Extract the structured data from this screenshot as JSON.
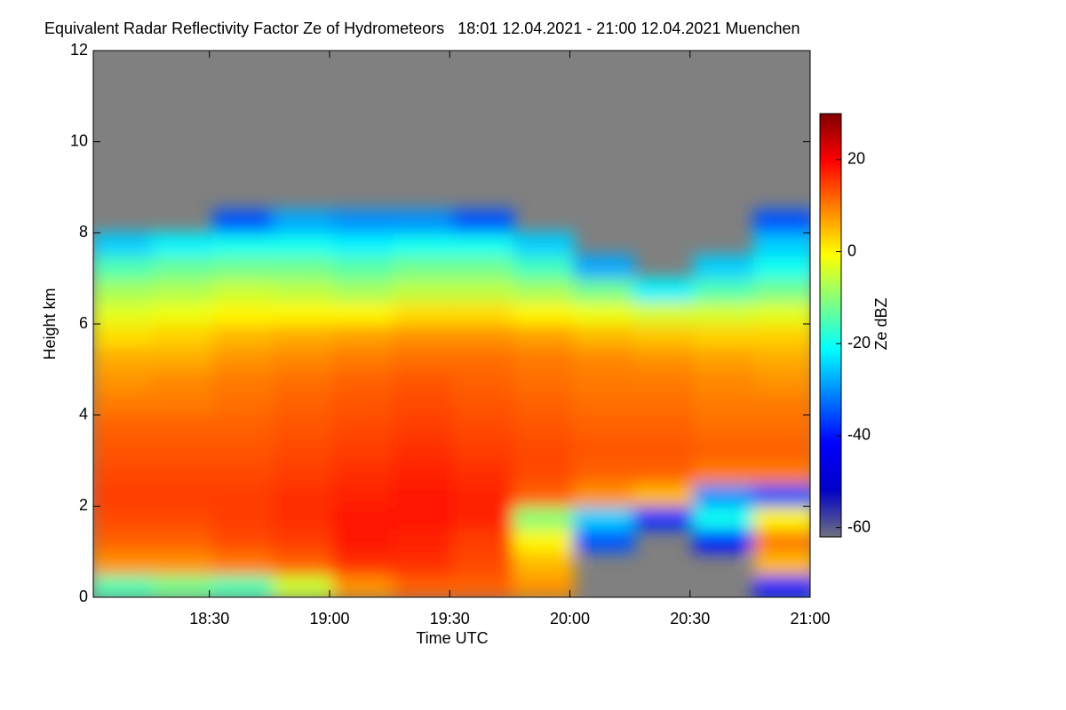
{
  "chart_data": {
    "type": "heatmap",
    "title": "Equivalent Radar Reflectivity Factor Ze of Hydrometeors   18:01 12.04.2021 - 21:00 12.04.2021 Muenchen",
    "x_label": "Time UTC",
    "y_label": "Height km",
    "colorbar_label": "Ze dBZ",
    "xlim": [
      1,
      180
    ],
    "xticks": [
      {
        "value": 30,
        "label": "18:30"
      },
      {
        "value": 60,
        "label": "19:00"
      },
      {
        "value": 90,
        "label": "19:30"
      },
      {
        "value": 120,
        "label": "20:00"
      },
      {
        "value": 150,
        "label": "20:30"
      },
      {
        "value": 180,
        "label": "21:00"
      }
    ],
    "ylim": [
      0,
      12
    ],
    "yticks": [
      0,
      2,
      4,
      6,
      8,
      10,
      12
    ],
    "clim": [
      -62,
      30
    ],
    "cticks": [
      -60,
      -40,
      -20,
      0,
      20
    ],
    "colors": [
      "#707080",
      "#0000c8",
      "#0000ff",
      "#0080ff",
      "#00ffff",
      "#80ff80",
      "#ffff00",
      "#ff8000",
      "#ff0000",
      "#800000"
    ],
    "no_data_color": "#808080",
    "x": [
      8.5,
      23.5,
      38.5,
      53.5,
      68.5,
      83.5,
      98.5,
      113.5,
      128.5,
      143.5,
      158.5,
      173.5
    ],
    "y": [
      0.25,
      0.75,
      1.25,
      1.75,
      2.25,
      2.75,
      3.25,
      3.75,
      4.25,
      4.75,
      5.25,
      5.75,
      6.25,
      6.75,
      7.25,
      7.75,
      8.25
    ],
    "values": [
      [
        -15,
        -12,
        -15,
        -5,
        8,
        12,
        12,
        8,
        null,
        null,
        null,
        -40
      ],
      [
        8,
        8,
        10,
        12,
        16,
        16,
        14,
        5,
        null,
        null,
        null,
        5
      ],
      [
        12,
        12,
        14,
        15,
        18,
        17,
        15,
        0,
        -35,
        null,
        -40,
        10
      ],
      [
        14,
        14,
        15,
        16,
        18,
        18,
        17,
        -10,
        -25,
        -38,
        -20,
        0
      ],
      [
        15,
        15,
        15,
        16,
        17,
        18,
        17,
        12,
        8,
        5,
        -30,
        -35
      ],
      [
        14,
        14,
        14,
        15,
        16,
        17,
        16,
        14,
        12,
        12,
        10,
        10
      ],
      [
        13,
        13,
        13,
        14,
        15,
        16,
        15,
        14,
        13,
        13,
        12,
        12
      ],
      [
        12,
        12,
        12,
        13,
        14,
        15,
        14,
        13,
        12,
        12,
        11,
        11
      ],
      [
        10,
        10,
        11,
        12,
        13,
        14,
        13,
        12,
        11,
        11,
        10,
        10
      ],
      [
        8,
        9,
        10,
        11,
        12,
        13,
        12,
        11,
        10,
        10,
        9,
        8
      ],
      [
        6,
        6,
        8,
        9,
        10,
        11,
        11,
        10,
        9,
        8,
        7,
        6
      ],
      [
        2,
        3,
        5,
        6,
        7,
        8,
        8,
        7,
        5,
        4,
        3,
        3
      ],
      [
        -3,
        -2,
        0,
        0,
        0,
        2,
        2,
        0,
        -2,
        -4,
        -4,
        -3
      ],
      [
        -8,
        -7,
        -5,
        -6,
        -8,
        -6,
        -6,
        -8,
        -12,
        -22,
        -15,
        -12
      ],
      [
        -15,
        -13,
        -12,
        -12,
        -14,
        -12,
        -12,
        -16,
        -28,
        null,
        -25,
        -20
      ],
      [
        -25,
        -22,
        -20,
        -20,
        -22,
        -20,
        -20,
        -25,
        null,
        null,
        null,
        -25
      ],
      [
        null,
        null,
        -35,
        -28,
        -30,
        -30,
        -35,
        null,
        null,
        null,
        null,
        -35
      ]
    ]
  }
}
